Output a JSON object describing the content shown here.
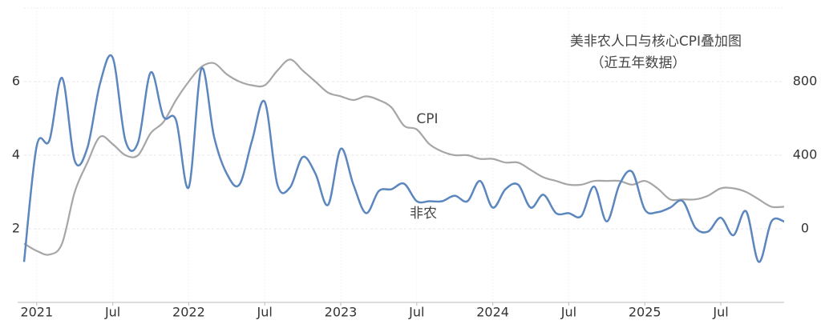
{
  "chart_data": {
    "type": "line",
    "title": "美非农人口与核心CPI叠加图",
    "subtitle": "（近五年数据）",
    "annotations": [
      "CPI",
      "非农"
    ],
    "categories": [
      null,
      "2021",
      null,
      null,
      null,
      null,
      null,
      "Jul",
      null,
      null,
      null,
      null,
      null,
      "2022",
      null,
      null,
      null,
      null,
      null,
      "Jul",
      null,
      null,
      null,
      null,
      null,
      "2023",
      null,
      null,
      null,
      null,
      null,
      "Jul",
      null,
      null,
      null,
      null,
      null,
      "2024",
      null,
      null,
      null,
      null,
      null,
      "Jul",
      null,
      null,
      null,
      null,
      null,
      "2025",
      null,
      null,
      null,
      null,
      null,
      "Jul",
      null,
      null,
      null,
      null,
      null
    ],
    "series": [
      {
        "name": "CPI",
        "color": "#a6a6a6",
        "axis": "y",
        "values": [
          1.6,
          1.4,
          1.3,
          1.6,
          3.0,
          3.8,
          4.5,
          4.3,
          4.0,
          4.0,
          4.6,
          4.9,
          5.5,
          6.0,
          6.4,
          6.5,
          6.2,
          6.0,
          5.9,
          5.9,
          6.3,
          6.6,
          6.3,
          6.0,
          5.7,
          5.6,
          5.5,
          5.6,
          5.5,
          5.3,
          4.8,
          4.7,
          4.3,
          4.1,
          4.0,
          4.0,
          3.9,
          3.9,
          3.8,
          3.8,
          3.6,
          3.4,
          3.3,
          3.2,
          3.2,
          3.3,
          3.3,
          3.3,
          3.2,
          3.3,
          3.1,
          2.8,
          2.8,
          2.8,
          2.9,
          3.1,
          3.1,
          3.0,
          2.8,
          2.6,
          2.6
        ]
      },
      {
        "name": "非农",
        "color": "#5b86be",
        "axis": "y2",
        "values": [
          -180,
          450,
          480,
          820,
          370,
          440,
          790,
          930,
          480,
          470,
          850,
          610,
          590,
          225,
          870,
          500,
          300,
          240,
          480,
          690,
          240,
          225,
          390,
          300,
          130,
          435,
          240,
          85,
          205,
          215,
          245,
          150,
          150,
          150,
          180,
          150,
          260,
          115,
          215,
          240,
          115,
          185,
          85,
          85,
          70,
          230,
          40,
          240,
          310,
          105,
          90,
          115,
          150,
          5,
          -15,
          60,
          -35,
          95,
          -180,
          40,
          40
        ]
      }
    ],
    "ylim": [
      0,
      8
    ],
    "yticks": [
      2,
      4,
      6
    ],
    "y2lim": [
      -400,
      1200
    ],
    "y2ticks": [
      0,
      400,
      800
    ],
    "grid": true
  }
}
